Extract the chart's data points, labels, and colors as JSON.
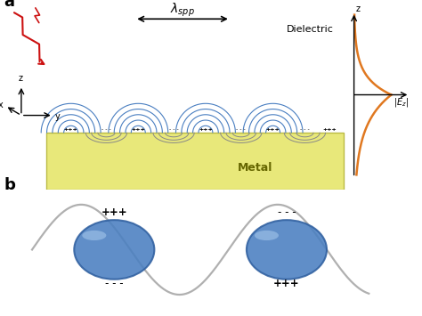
{
  "fig_width": 4.74,
  "fig_height": 3.55,
  "bg_color": "#ffffff",
  "metal_color": "#e8e87a",
  "metal_border": "#cccc44",
  "field_line_color": "#4a7fc1",
  "charge_text_color": "#000000",
  "dielectric_text": "Dielectric",
  "metal_text": "Metal",
  "panel_a_label": "a",
  "panel_b_label": "b",
  "sine_color": "#b0b0b0",
  "sphere_color": "#4a7fc1",
  "sphere_edge": "#3060a0",
  "orange_curve_color": "#e07820",
  "axis_color": "#111111",
  "light_color": "#cc1111",
  "below_arc_color": "#888888"
}
